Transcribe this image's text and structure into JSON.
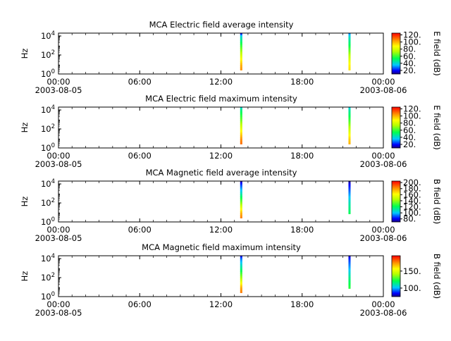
{
  "chart_data": [
    {
      "type": "heatmap",
      "title": "MCA  Electric field average intensity",
      "ylabel": "Hz",
      "colorbar_label": "E field (dB)",
      "colorbar_ticks": [
        "20.",
        "40.",
        "60.",
        "80.",
        "100.",
        "120."
      ],
      "colorbar_range": [
        10,
        125
      ],
      "yticks": [
        {
          "base": "10",
          "exp": "0"
        },
        {
          "base": "10",
          "exp": "2"
        },
        {
          "base": "10",
          "exp": "4"
        }
      ],
      "xticks": [
        {
          "time": "00:00",
          "date": "2003-08-05"
        },
        {
          "time": "06:00",
          "date": ""
        },
        {
          "time": "12:00",
          "date": ""
        },
        {
          "time": "18:00",
          "date": ""
        },
        {
          "time": "00:00",
          "date": "2003-08-06"
        }
      ],
      "series": [
        {
          "x": "13:30",
          "values_by_height": [
            [
              1,
              110
            ],
            [
              10,
              100
            ],
            [
              100,
              80
            ],
            [
              1000,
              60
            ],
            [
              10000,
              40
            ],
            [
              20000,
              20
            ]
          ]
        },
        {
          "x": "21:30",
          "values_by_height": [
            [
              1,
              95
            ],
            [
              10,
              90
            ],
            [
              100,
              75
            ],
            [
              1000,
              55
            ],
            [
              10000,
              40
            ],
            [
              20000,
              30
            ]
          ]
        }
      ]
    },
    {
      "type": "heatmap",
      "title": "MCA  Electric field maximum intensity",
      "ylabel": "Hz",
      "colorbar_label": "E field (dB)",
      "colorbar_ticks": [
        "20.",
        "40.",
        "60.",
        "80.",
        "100.",
        "120."
      ],
      "colorbar_range": [
        10,
        125
      ],
      "yticks": [
        {
          "base": "10",
          "exp": "0"
        },
        {
          "base": "10",
          "exp": "2"
        },
        {
          "base": "10",
          "exp": "4"
        }
      ],
      "xticks": [
        {
          "time": "00:00",
          "date": "2003-08-05"
        },
        {
          "time": "06:00",
          "date": ""
        },
        {
          "time": "12:00",
          "date": ""
        },
        {
          "time": "18:00",
          "date": ""
        },
        {
          "time": "00:00",
          "date": "2003-08-06"
        }
      ],
      "series": [
        {
          "x": "13:30",
          "values_by_height": [
            [
              1,
              115
            ],
            [
              10,
              105
            ],
            [
              100,
              85
            ],
            [
              1000,
              65
            ],
            [
              10000,
              50
            ],
            [
              20000,
              40
            ]
          ]
        },
        {
          "x": "21:30",
          "values_by_height": [
            [
              1,
              105
            ],
            [
              10,
              95
            ],
            [
              100,
              78
            ],
            [
              1000,
              60
            ],
            [
              10000,
              45
            ],
            [
              20000,
              38
            ]
          ]
        }
      ]
    },
    {
      "type": "heatmap",
      "title": "MCA  Magnetic field average intensity",
      "ylabel": "Hz",
      "colorbar_label": "B field (dB)",
      "colorbar_ticks": [
        "80.",
        "100.",
        "120.",
        "140.",
        "160.",
        "180.",
        "200."
      ],
      "colorbar_range": [
        70,
        205
      ],
      "yticks": [
        {
          "base": "10",
          "exp": "0"
        },
        {
          "base": "10",
          "exp": "2"
        },
        {
          "base": "10",
          "exp": "4"
        }
      ],
      "xticks": [
        {
          "time": "00:00",
          "date": "2003-08-05"
        },
        {
          "time": "06:00",
          "date": ""
        },
        {
          "time": "12:00",
          "date": ""
        },
        {
          "time": "18:00",
          "date": ""
        },
        {
          "time": "00:00",
          "date": "2003-08-06"
        }
      ],
      "series": [
        {
          "x": "13:30",
          "values_by_height": [
            [
              1,
              195
            ],
            [
              10,
              175
            ],
            [
              100,
              140
            ],
            [
              1000,
              110
            ],
            [
              10000,
              85
            ],
            [
              20000,
              75
            ]
          ]
        },
        {
          "x": "21:30",
          "values_by_height": [
            [
              3,
              125
            ],
            [
              10,
              120
            ],
            [
              100,
              110
            ],
            [
              1000,
              95
            ],
            [
              10000,
              80
            ],
            [
              20000,
              72
            ]
          ]
        }
      ]
    },
    {
      "type": "heatmap",
      "title": "MCA  Magnetic field maximum intensity",
      "ylabel": "Hz",
      "colorbar_label": "B field (dB)",
      "colorbar_ticks": [
        "100.",
        "150."
      ],
      "colorbar_range": [
        75,
        195
      ],
      "yticks": [
        {
          "base": "10",
          "exp": "0"
        },
        {
          "base": "10",
          "exp": "2"
        },
        {
          "base": "10",
          "exp": "4"
        }
      ],
      "xticks": [
        {
          "time": "00:00",
          "date": "2003-08-05"
        },
        {
          "time": "06:00",
          "date": ""
        },
        {
          "time": "12:00",
          "date": ""
        },
        {
          "time": "18:00",
          "date": ""
        },
        {
          "time": "00:00",
          "date": "2003-08-06"
        }
      ],
      "series": [
        {
          "x": "13:30",
          "values_by_height": [
            [
              1,
              185
            ],
            [
              10,
              170
            ],
            [
              100,
              140
            ],
            [
              1000,
              115
            ],
            [
              10000,
              95
            ],
            [
              20000,
              85
            ]
          ]
        },
        {
          "x": "21:30",
          "values_by_height": [
            [
              3,
              130
            ],
            [
              10,
              125
            ],
            [
              100,
              115
            ],
            [
              1000,
              100
            ],
            [
              10000,
              88
            ],
            [
              20000,
              80
            ]
          ]
        }
      ]
    }
  ]
}
